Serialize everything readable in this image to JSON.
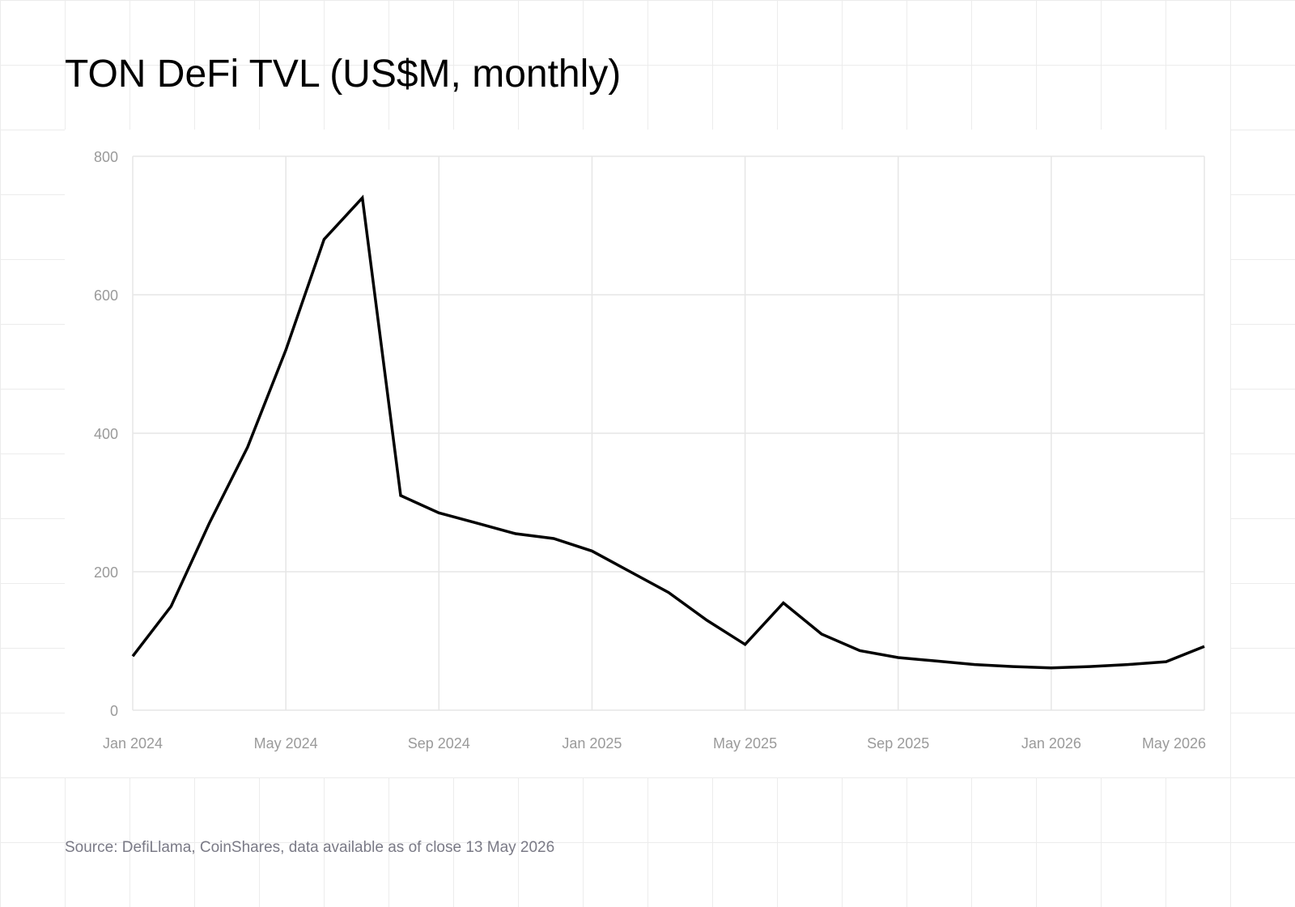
{
  "chart_data": {
    "type": "line",
    "title": "TON DeFi TVL (US$M, monthly)",
    "xlabel": "",
    "ylabel": "",
    "ylim": [
      0,
      800
    ],
    "yticks": [
      0,
      200,
      400,
      600,
      800
    ],
    "xlim": [
      "2024-01",
      "2026-05"
    ],
    "xticks": [
      "2024-01",
      "2024-05",
      "2024-09",
      "2025-01",
      "2025-05",
      "2025-09",
      "2026-01",
      "2026-05"
    ],
    "xtick_labels": [
      "Jan 2024",
      "May 2024",
      "Sep 2024",
      "Jan 2025",
      "May 2025",
      "Sep 2025",
      "Jan 2026",
      "May 2026"
    ],
    "grid": true,
    "legend": "none",
    "line_color": "#000000",
    "x": [
      "2024-01",
      "2024-02",
      "2024-03",
      "2024-04",
      "2024-05",
      "2024-06",
      "2024-07",
      "2024-08",
      "2024-09",
      "2024-10",
      "2024-11",
      "2024-12",
      "2025-01",
      "2025-02",
      "2025-03",
      "2025-04",
      "2025-05",
      "2025-06",
      "2025-07",
      "2025-08",
      "2025-09",
      "2025-10",
      "2025-11",
      "2025-12",
      "2026-01",
      "2026-02",
      "2026-03",
      "2026-04",
      "2026-05"
    ],
    "values": [
      78,
      150,
      270,
      380,
      520,
      680,
      740,
      310,
      285,
      270,
      255,
      248,
      230,
      200,
      170,
      130,
      95,
      155,
      110,
      86,
      76,
      71,
      66,
      63,
      61,
      63,
      66,
      70,
      92
    ]
  },
  "source": "Source: DefiLlama, CoinShares, data available as of close 13 May 2026"
}
